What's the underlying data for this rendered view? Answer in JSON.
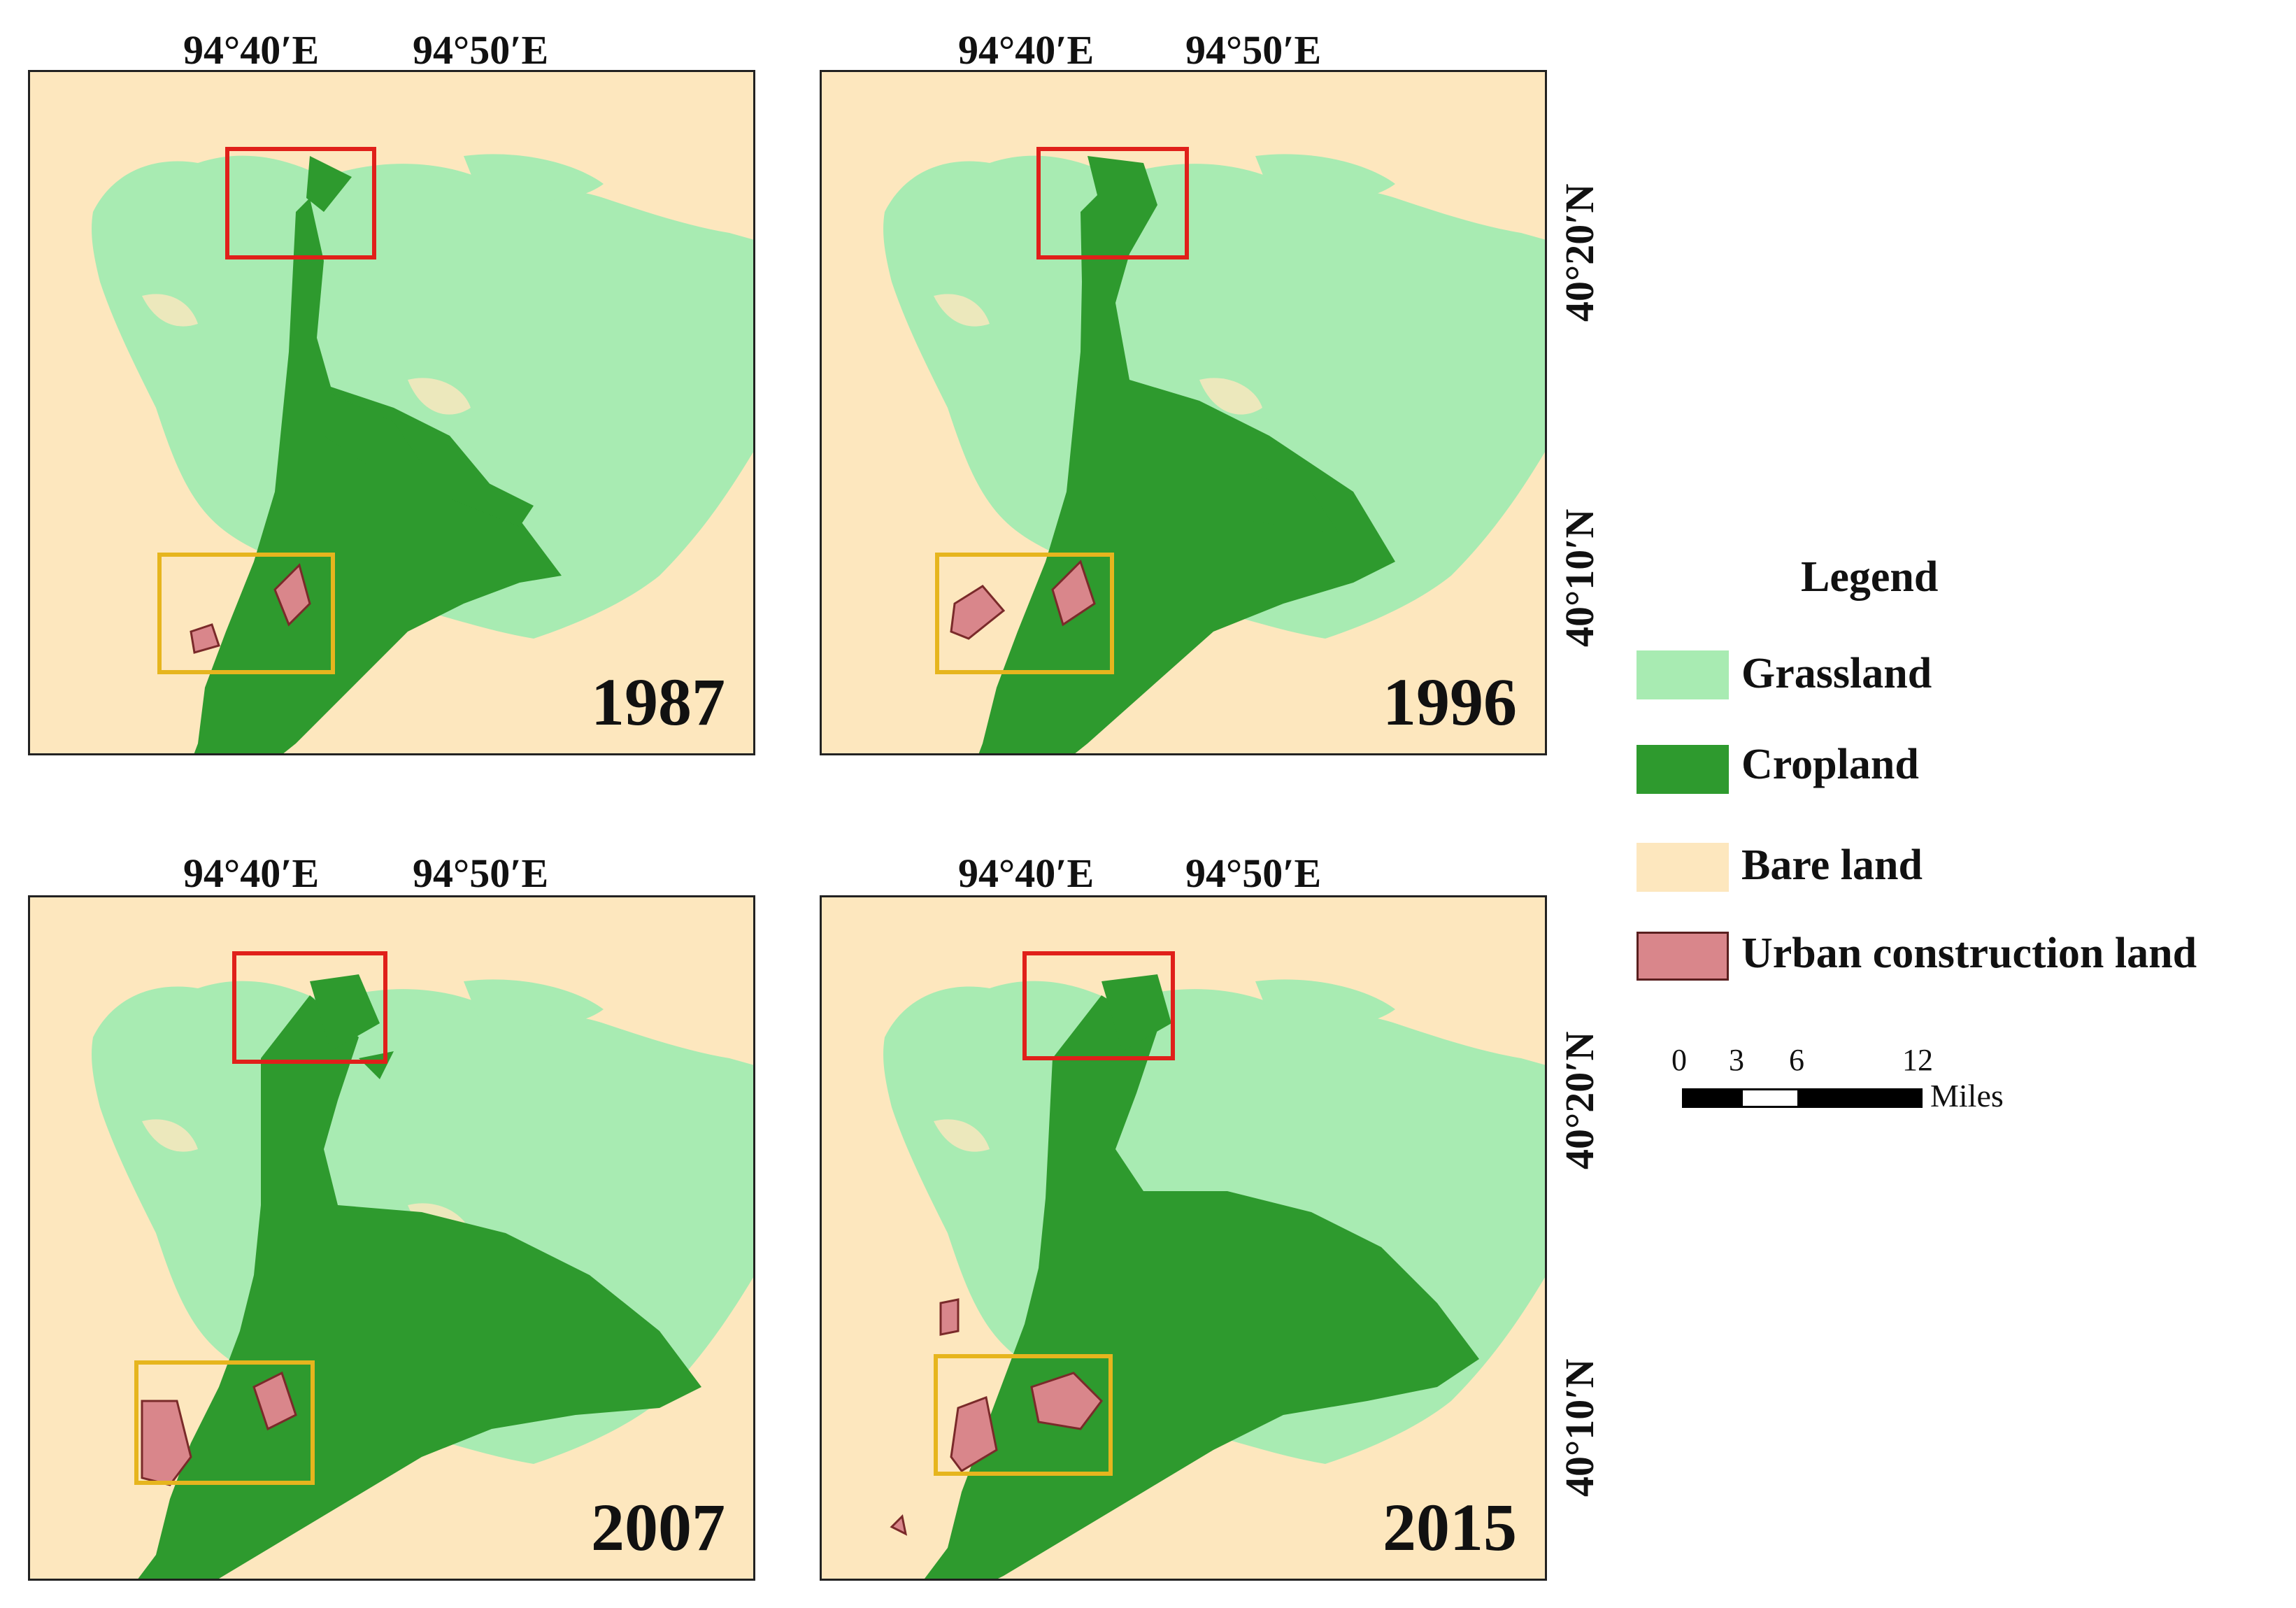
{
  "lon_labels": [
    "94°40′E",
    "94°50′E"
  ],
  "lat_labels": [
    "40°20′N",
    "40°10′N"
  ],
  "panels": [
    {
      "year": "1987"
    },
    {
      "year": "1996"
    },
    {
      "year": "2007"
    },
    {
      "year": "2015"
    }
  ],
  "legend": {
    "title": "Legend",
    "items": [
      {
        "label": "Grassland",
        "color": "#a8ebb2"
      },
      {
        "label": "Cropland",
        "color": "#2e9a2e"
      },
      {
        "label": "Bare land",
        "color": "#fde7be"
      },
      {
        "label": "Urban construction land",
        "color": "#d9868b"
      }
    ]
  },
  "scale_bar": {
    "ticks": [
      "0",
      "3",
      "6",
      "12"
    ],
    "unit": "Miles"
  },
  "highlight_box_colors": {
    "north": "#e0201a",
    "south": "#e6b51e"
  }
}
